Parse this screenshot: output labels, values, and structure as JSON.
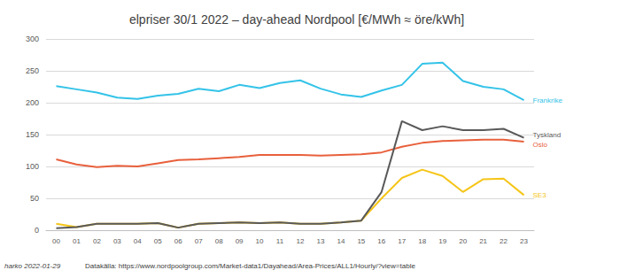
{
  "chart_data": {
    "type": "line",
    "title": "elpriser 30/1 2022 – day-ahead Nordpool [€/MWh ≈ öre/kWh]",
    "categories": [
      "00",
      "01",
      "02",
      "03",
      "04",
      "05",
      "06",
      "07",
      "08",
      "09",
      "10",
      "11",
      "12",
      "13",
      "14",
      "15",
      "16",
      "17",
      "18",
      "19",
      "20",
      "21",
      "22",
      "23"
    ],
    "series": [
      {
        "name": "Frankrike",
        "color": "#33c3e8",
        "values": [
          226,
          221,
          216,
          208,
          206,
          211,
          214,
          222,
          218,
          228,
          223,
          231,
          235,
          222,
          213,
          209,
          219,
          228,
          261,
          263,
          234,
          225,
          221,
          204
        ]
      },
      {
        "name": "Oslo",
        "color": "#e8603c",
        "values": [
          111,
          103,
          99,
          101,
          100,
          105,
          110,
          111,
          113,
          115,
          118,
          118,
          118,
          117,
          118,
          119,
          122,
          131,
          137,
          140,
          141,
          142,
          142,
          139
        ]
      },
      {
        "name": "SE3",
        "color": "#f5c518",
        "values": [
          10,
          5,
          10,
          10,
          10,
          11,
          4,
          10,
          11,
          12,
          11,
          12,
          10,
          10,
          12,
          15,
          50,
          82,
          95,
          85,
          60,
          80,
          81,
          55
        ]
      },
      {
        "name": "Tyskland",
        "color": "#595959",
        "values": [
          3,
          5,
          10,
          10,
          10,
          11,
          4,
          10,
          11,
          12,
          11,
          12,
          10,
          10,
          12,
          15,
          60,
          171,
          157,
          163,
          157,
          157,
          159,
          145
        ]
      }
    ],
    "ylim": [
      0,
      300
    ],
    "yticks": [
      0,
      50,
      100,
      150,
      200,
      250,
      300
    ],
    "grid": true,
    "annotations": [
      "harko 2022-01-29",
      "Datakälla: https://www.nordpoolgroup.com/Market-data1/Dayahead/Area-Prices/ALL1/Hourly/?view=table"
    ]
  }
}
